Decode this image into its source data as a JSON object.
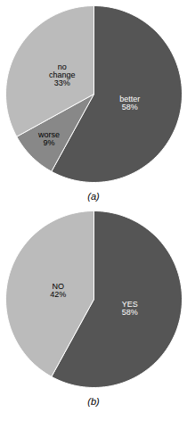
{
  "chart_data": [
    {
      "type": "pie",
      "subtitle": "(a)",
      "categories": [
        "better",
        "worse",
        "no change"
      ],
      "values": [
        58,
        9,
        33
      ],
      "value_labels": [
        "better\n58%",
        "worse\n9%",
        "no\nchange\n33%"
      ],
      "colors": [
        "#555555",
        "#888888",
        "#bbbbbb"
      ],
      "data_labels": true
    },
    {
      "type": "pie",
      "subtitle": "(b)",
      "categories": [
        "YES",
        "NO"
      ],
      "values": [
        58,
        42
      ],
      "value_labels": [
        "YES\n58%",
        "NO\n42%"
      ],
      "colors": [
        "#555555",
        "#bbbbbb"
      ],
      "data_labels": true
    }
  ]
}
